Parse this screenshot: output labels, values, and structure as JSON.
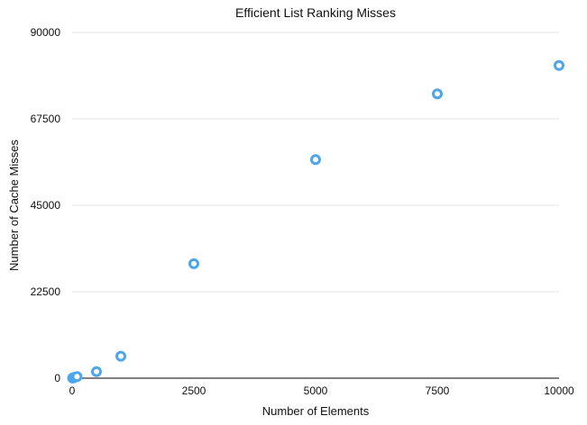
{
  "chart_data": {
    "type": "scatter",
    "title": "Efficient List Ranking Misses",
    "xlabel": "Number of Elements",
    "ylabel": "Number of Cache Misses",
    "xlim": [
      0,
      10000
    ],
    "ylim": [
      0,
      90000
    ],
    "xticks": [
      0,
      2500,
      5000,
      7500,
      10000
    ],
    "yticks": [
      0,
      22500,
      45000,
      67500,
      90000
    ],
    "x_tick_labels": [
      "0",
      "2500",
      "5000",
      "7500",
      "10000"
    ],
    "y_tick_labels": [
      "0",
      "22500",
      "45000",
      "67500",
      "90000"
    ],
    "grid": "horizontal",
    "legend": "none",
    "point_color": "#4da6ec",
    "series": [
      {
        "x": [
          10,
          25,
          50,
          100,
          500,
          1000,
          2500,
          5000,
          7500,
          10000
        ],
        "y": [
          40,
          100,
          220,
          400,
          1700,
          5700,
          29800,
          56900,
          74000,
          81400
        ]
      }
    ]
  }
}
